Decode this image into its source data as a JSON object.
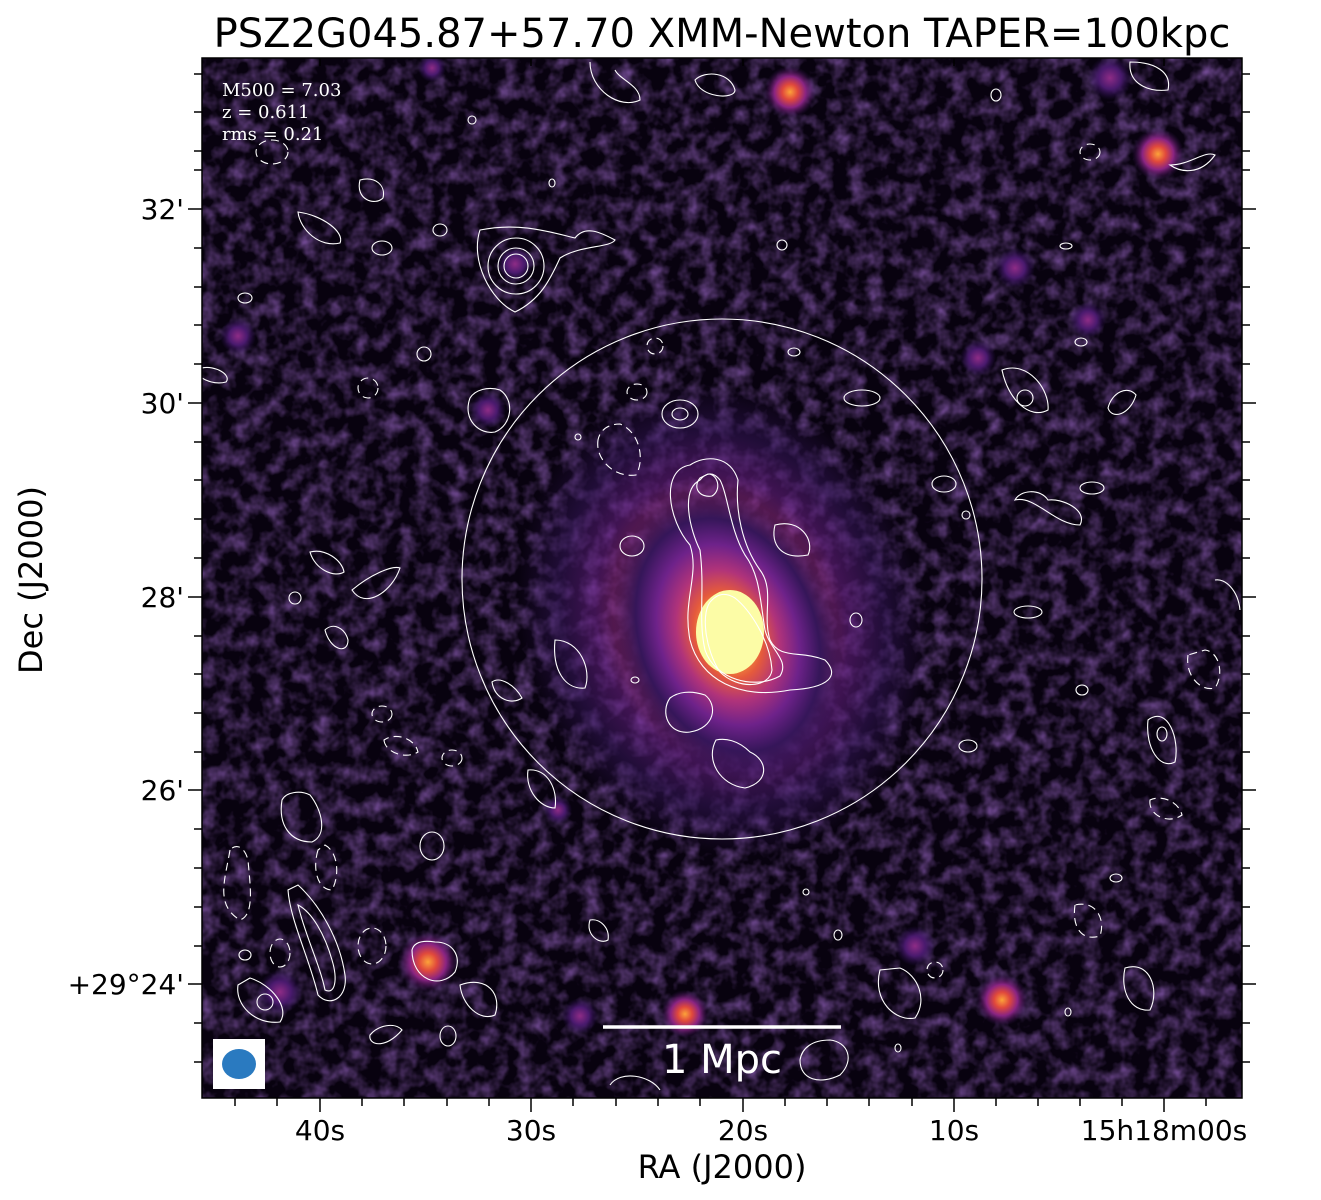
{
  "title": "PSZ2G045.87+57.70 XMM-Newton TAPER=100kpc",
  "info": {
    "line1": "M500 = 7.03",
    "line2": "z = 0.611",
    "line3": "rms = 0.21"
  },
  "scalebar_label": "1 Mpc",
  "x_axis": {
    "label": "RA (J2000)",
    "ticks": [
      "40s",
      "30s",
      "20s",
      "10s",
      "15h18m00s"
    ]
  },
  "y_axis": {
    "label": "Dec (J2000)",
    "ticks": [
      "32'",
      "30'",
      "28'",
      "26'",
      "+29°24'"
    ]
  },
  "colors": {
    "background": "#08020f",
    "core": "#fcfca0",
    "contour": "#ffffff",
    "beam": "#2a7ac0"
  }
}
